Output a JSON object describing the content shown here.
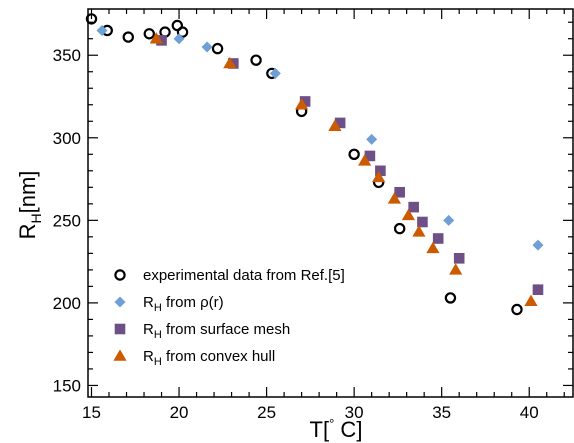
{
  "chart_data": {
    "type": "scatter",
    "xlabel_main": "T[",
    "xlabel_sup": "°",
    "xlabel_tail": " C]",
    "ylabel_main": "R",
    "ylabel_sub": "H",
    "ylabel_tail": "[nm]",
    "xlim": [
      14.8,
      42.5
    ],
    "ylim": [
      143,
      378
    ],
    "x_ticks": [
      15,
      20,
      25,
      30,
      35,
      40
    ],
    "x_tick_labels": [
      "15",
      "20",
      "25",
      "30",
      "35",
      "40"
    ],
    "y_ticks": [
      150,
      200,
      250,
      300,
      350
    ],
    "y_tick_labels": [
      "150",
      "200",
      "250",
      "300",
      "350"
    ],
    "x_minor_step": 1,
    "y_minor_step": 10,
    "grid": false,
    "legend_position": "bottom-left",
    "series": [
      {
        "legend_text": "experimental data from Ref.[5]",
        "marker": "circle-open",
        "color": "#000000",
        "x": [
          15.0,
          15.9,
          17.1,
          18.3,
          19.2,
          19.9,
          20.2,
          22.2,
          24.4,
          25.3,
          27.0,
          30.0,
          31.4,
          32.6,
          35.5,
          39.3
        ],
        "y": [
          372,
          365,
          361,
          363,
          364,
          368,
          364,
          354,
          347,
          339,
          316,
          290,
          273,
          245,
          203,
          196
        ]
      },
      {
        "legend_prefix": "R",
        "legend_sub": "H",
        "legend_text": " from ρ(r)",
        "marker": "diamond",
        "color": "#6f9fd4",
        "x": [
          15.6,
          20.0,
          21.6,
          25.5,
          27.2,
          31.0,
          35.4,
          40.5
        ],
        "y": [
          365,
          360,
          355,
          339,
          322,
          299,
          250,
          235
        ]
      },
      {
        "legend_prefix": "R",
        "legend_sub": "H",
        "legend_text": " from surface mesh",
        "marker": "square",
        "color": "#6e4f86",
        "x": [
          19.0,
          23.1,
          27.2,
          29.2,
          30.9,
          31.5,
          32.6,
          33.4,
          33.9,
          34.8,
          36.0,
          40.5
        ],
        "y": [
          359,
          345,
          322,
          309,
          289,
          280,
          267,
          258,
          249,
          239,
          227,
          208
        ]
      },
      {
        "legend_prefix": "R",
        "legend_sub": "H",
        "legend_text": " from convex hull",
        "marker": "triangle",
        "color": "#cc5a00",
        "x": [
          18.7,
          22.9,
          27.0,
          28.9,
          30.6,
          31.4,
          32.3,
          33.1,
          33.7,
          34.5,
          35.8,
          40.1
        ],
        "y": [
          360,
          345,
          320,
          307,
          286,
          276,
          263,
          253,
          243,
          233,
          220,
          201
        ]
      }
    ]
  }
}
